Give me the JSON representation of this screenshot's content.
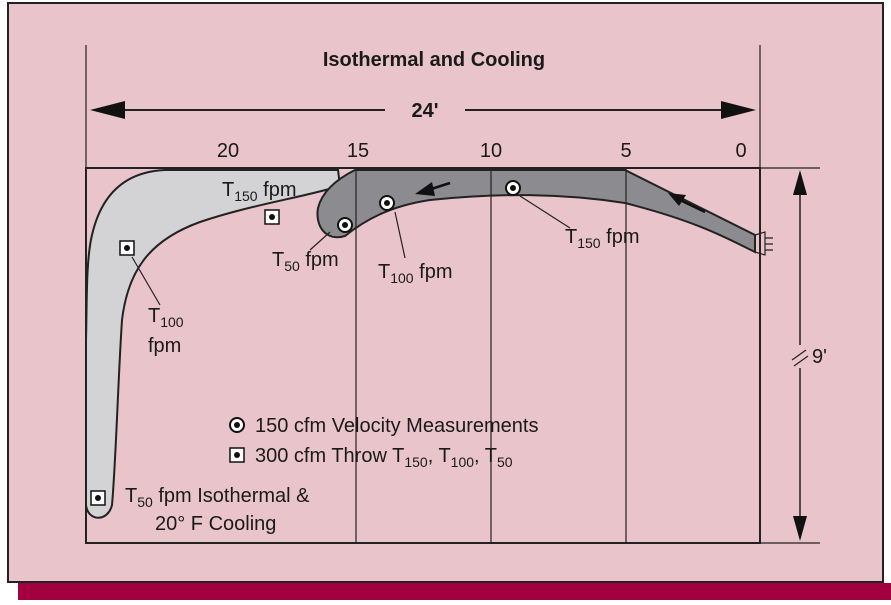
{
  "title": "Isothermal and Cooling",
  "span_label": "24'",
  "height_label": "9'",
  "scale_labels": [
    "20",
    "15",
    "10",
    "5",
    "0"
  ],
  "labels": [
    [
      {
        "text": "T"
      },
      {
        "sub": "150"
      },
      {
        "text": " fpm"
      }
    ],
    [
      {
        "text": "T"
      },
      {
        "sub": "50"
      },
      {
        "text": " fpm"
      }
    ],
    [
      {
        "text": "T"
      },
      {
        "sub": "100"
      },
      {
        "text": " fpm"
      }
    ],
    [
      {
        "text": "T"
      },
      {
        "sub": "150"
      },
      {
        "text": " fpm"
      }
    ],
    [
      {
        "text": "T"
      },
      {
        "sub": "100"
      }
    ],
    [
      {
        "text": "fpm"
      }
    ],
    [
      {
        "text": "T"
      },
      {
        "sub": "50"
      },
      {
        "text": " fpm Isothermal &"
      }
    ],
    [
      {
        "text": "20° F Cooling"
      }
    ]
  ],
  "legend": [
    [
      {
        "text": "150 cfm Velocity Measurements"
      }
    ],
    [
      {
        "text": "300 cfm Throw T"
      },
      {
        "sub": "150"
      },
      {
        "text": ", T"
      },
      {
        "sub": "100"
      },
      {
        "text": ", T"
      },
      {
        "sub": "50"
      }
    ]
  ]
}
